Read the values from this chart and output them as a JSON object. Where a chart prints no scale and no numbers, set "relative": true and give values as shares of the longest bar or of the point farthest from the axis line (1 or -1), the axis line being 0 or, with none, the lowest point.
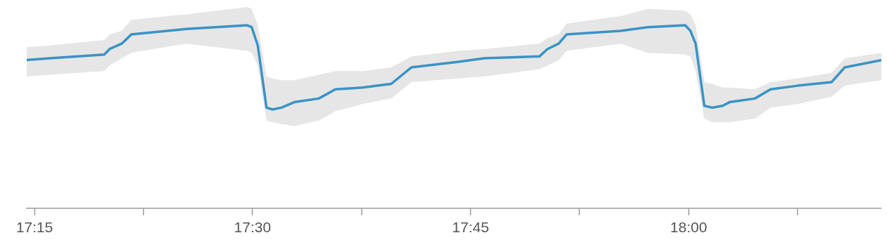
{
  "chart_data": {
    "type": "line",
    "relative": true,
    "xlim": [
      17.241,
      18.221
    ],
    "xticks": [
      {
        "value": 17.25,
        "label": "17:15"
      },
      {
        "value": 17.375,
        "label": null
      },
      {
        "value": 17.5,
        "label": "17:30"
      },
      {
        "value": 17.625,
        "label": null
      },
      {
        "value": 17.75,
        "label": "17:45"
      },
      {
        "value": 17.875,
        "label": null
      },
      {
        "value": 18,
        "label": "18:00"
      },
      {
        "value": 18.125,
        "label": null
      }
    ],
    "marker": "none",
    "line_style": "solid",
    "x": [
      17.241,
      17.268,
      17.33,
      17.336,
      17.35,
      17.361,
      17.424,
      17.494,
      17.499,
      17.506,
      17.516,
      17.523,
      17.533,
      17.548,
      17.576,
      17.595,
      17.626,
      17.659,
      17.682,
      17.735,
      17.766,
      17.829,
      17.838,
      17.851,
      17.86,
      17.922,
      17.953,
      17.996,
      18.002,
      18.008,
      18.018,
      18.027,
      18.039,
      18.047,
      18.076,
      18.094,
      18.125,
      18.164,
      18.179,
      18.221
    ],
    "series": [
      {
        "color": "#3a93c3",
        "values": [
          0.81,
          0.82,
          0.84,
          0.87,
          0.9,
          0.95,
          0.98,
          1.0,
          0.99,
          0.89,
          0.55,
          0.54,
          0.55,
          0.58,
          0.6,
          0.65,
          0.66,
          0.68,
          0.77,
          0.8,
          0.82,
          0.83,
          0.87,
          0.9,
          0.95,
          0.97,
          0.99,
          1.0,
          0.97,
          0.9,
          0.56,
          0.55,
          0.56,
          0.58,
          0.6,
          0.65,
          0.67,
          0.69,
          0.77,
          0.81
        ],
        "upper": [
          0.88,
          0.89,
          0.92,
          0.95,
          0.97,
          1.03,
          1.06,
          1.1,
          1.09,
          1.0,
          0.72,
          0.71,
          0.7,
          0.7,
          0.73,
          0.75,
          0.75,
          0.77,
          0.83,
          0.86,
          0.87,
          0.9,
          0.93,
          0.95,
          1.01,
          1.05,
          1.09,
          1.08,
          1.06,
          1.0,
          0.69,
          0.68,
          0.66,
          0.66,
          0.65,
          0.69,
          0.71,
          0.74,
          0.82,
          0.85
        ],
        "lower": [
          0.72,
          0.73,
          0.75,
          0.78,
          0.82,
          0.85,
          0.9,
          0.86,
          0.85,
          0.78,
          0.48,
          0.47,
          0.46,
          0.45,
          0.48,
          0.53,
          0.57,
          0.6,
          0.69,
          0.71,
          0.72,
          0.76,
          0.78,
          0.81,
          0.86,
          0.9,
          0.85,
          0.84,
          0.83,
          0.75,
          0.49,
          0.47,
          0.47,
          0.47,
          0.49,
          0.55,
          0.57,
          0.61,
          0.67,
          0.7
        ]
      }
    ]
  }
}
